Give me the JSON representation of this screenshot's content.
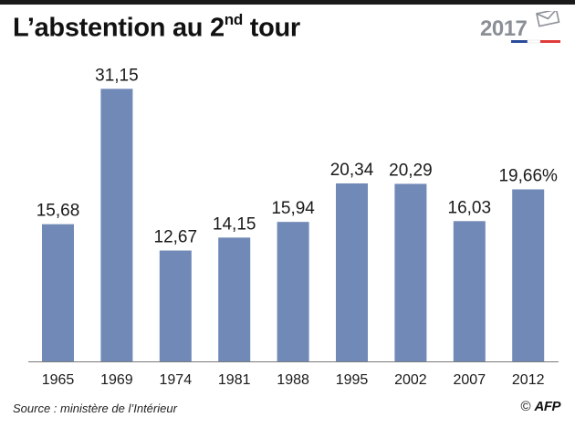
{
  "header": {
    "title_main": "L’abstention au 2",
    "title_sup": "nd",
    "title_end": " tour",
    "logo_year": "2017"
  },
  "colors": {
    "bar": "#7189b7",
    "text": "#1a1a1a",
    "baseline": "#7a7a7a",
    "flag_blue": "#2a4a9a",
    "flag_red": "#e03a3a"
  },
  "chart_data": {
    "type": "bar",
    "categories": [
      "1965",
      "1969",
      "1974",
      "1981",
      "1988",
      "1995",
      "2002",
      "2007",
      "2012"
    ],
    "values": [
      15.68,
      31.15,
      12.67,
      14.15,
      15.94,
      20.34,
      20.29,
      16.03,
      19.66
    ],
    "value_labels": [
      "15,68",
      "31,15",
      "12,67",
      "14,15",
      "15,94",
      "20,34",
      "20,29",
      "16,03",
      "19,66%"
    ],
    "title": "L’abstention au 2nd tour",
    "ylim": [
      0,
      34
    ],
    "grid": false
  },
  "footer": {
    "source": "Source : ministère de l’Intérieur",
    "copyright": "©",
    "agency": "AFP"
  }
}
